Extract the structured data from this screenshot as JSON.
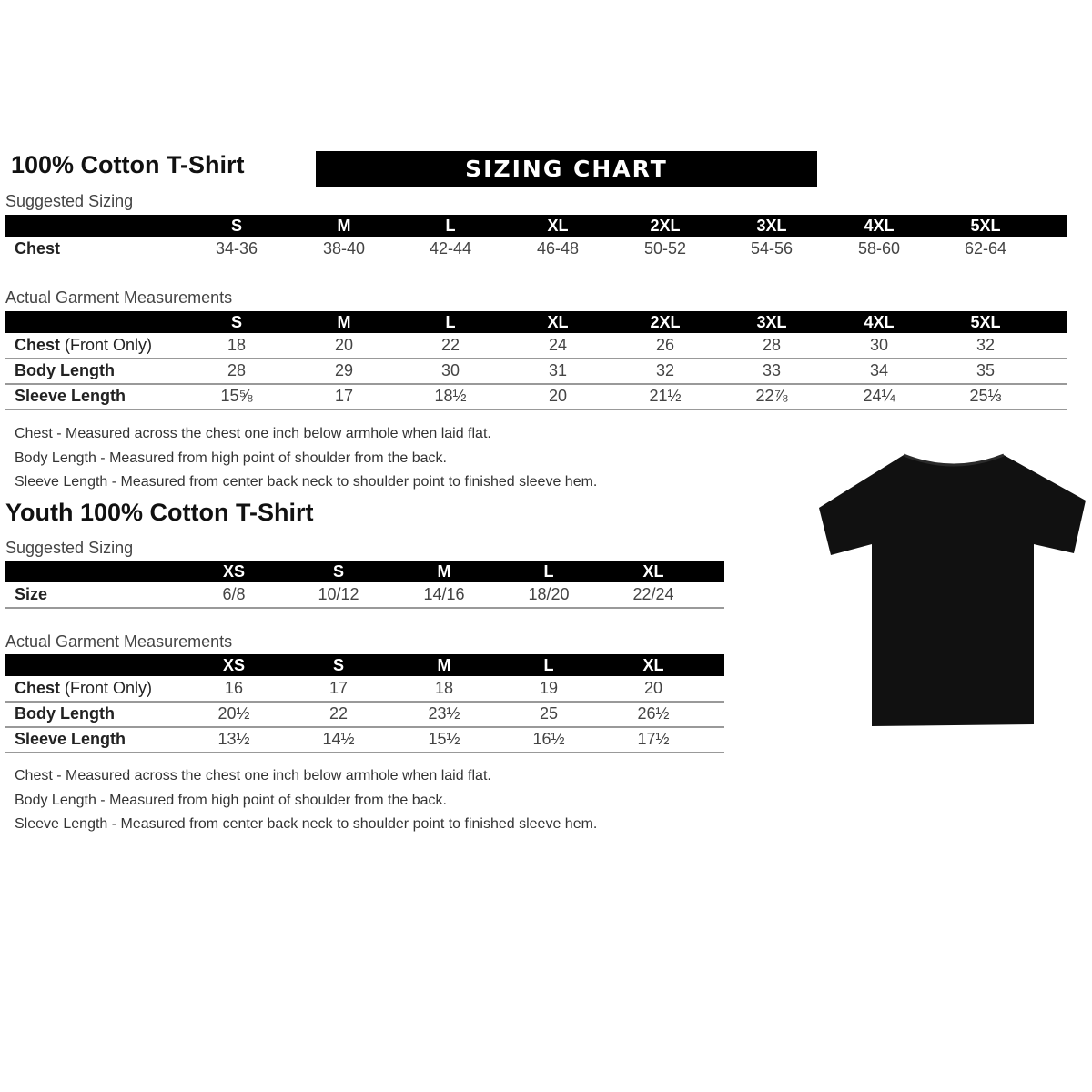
{
  "banner": "SIZING CHART",
  "adult": {
    "title": "100% Cotton T-Shirt",
    "suggested_label": "Suggested Sizing",
    "sizes": [
      "S",
      "M",
      "L",
      "XL",
      "2XL",
      "3XL",
      "4XL",
      "5XL"
    ],
    "suggested_rows": [
      {
        "label": "Chest",
        "values": [
          "34-36",
          "38-40",
          "42-44",
          "46-48",
          "50-52",
          "54-56",
          "58-60",
          "62-64"
        ]
      }
    ],
    "actual_label": "Actual Garment Measurements",
    "actual_rows": [
      {
        "label": "Chest",
        "label_extra": " (Front Only)",
        "values": [
          "18",
          "20",
          "22",
          "24",
          "26",
          "28",
          "30",
          "32"
        ]
      },
      {
        "label": "Body Length",
        "values": [
          "28",
          "29",
          "30",
          "31",
          "32",
          "33",
          "34",
          "35"
        ]
      },
      {
        "label": "Sleeve Length",
        "values": [
          "15⅝",
          "17",
          "18½",
          "20",
          "21½",
          "22⅞",
          "24¼",
          "25⅓"
        ]
      }
    ],
    "notes": [
      "Chest - Measured across the chest one inch below armhole when laid flat.",
      "Body Length - Measured from high point of shoulder from the back.",
      "Sleeve Length - Measured from center back neck to shoulder point to finished sleeve hem."
    ]
  },
  "youth": {
    "title": "Youth 100% Cotton T-Shirt",
    "suggested_label": "Suggested Sizing",
    "sizes": [
      "XS",
      "S",
      "M",
      "L",
      "XL"
    ],
    "suggested_rows": [
      {
        "label": "Size",
        "values": [
          "6/8",
          "10/12",
          "14/16",
          "18/20",
          "22/24"
        ]
      }
    ],
    "actual_label": "Actual Garment Measurements",
    "actual_rows": [
      {
        "label": "Chest",
        "label_extra": " (Front Only)",
        "values": [
          "16",
          "17",
          "18",
          "19",
          "20"
        ]
      },
      {
        "label": "Body Length",
        "values": [
          "20½",
          "22",
          "23½",
          "25",
          "26½"
        ]
      },
      {
        "label": "Sleeve Length",
        "values": [
          "13½",
          "14½",
          "15½",
          "16½",
          "17½"
        ]
      }
    ],
    "notes": [
      "Chest - Measured across the chest one inch below armhole when laid flat.",
      "Body Length - Measured from high point of shoulder from the back.",
      "Sleeve Length - Measured from center back neck to shoulder point to finished sleeve hem."
    ]
  },
  "image": {
    "icon": "t-shirt-icon",
    "color": "#111111"
  }
}
